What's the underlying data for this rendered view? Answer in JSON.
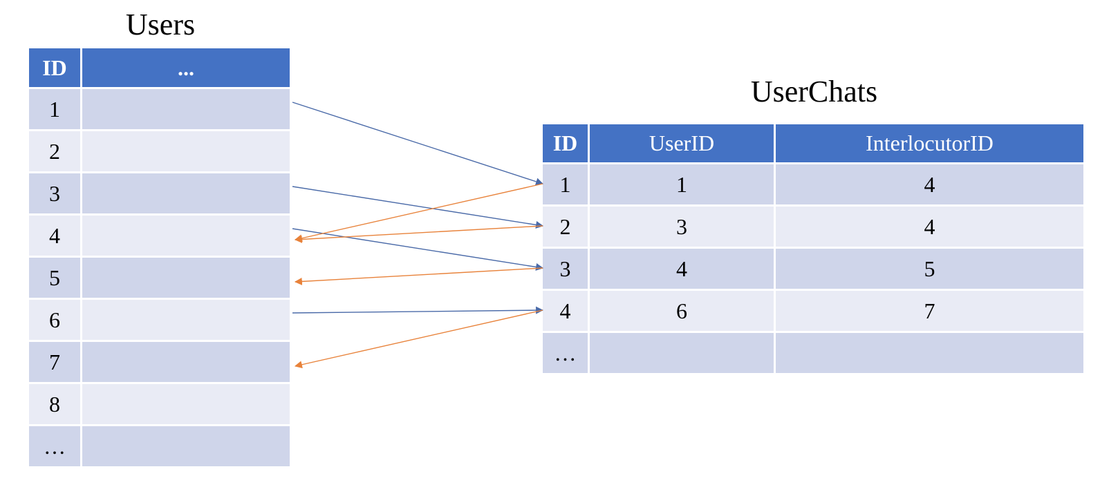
{
  "users": {
    "title": "Users",
    "headers": [
      "ID",
      "..."
    ],
    "rows": [
      "1",
      "2",
      "3",
      "4",
      "5",
      "6",
      "7",
      "8",
      "…"
    ]
  },
  "userchats": {
    "title": "UserChats",
    "headers": [
      "ID",
      "UserID",
      "InterlocutorID"
    ],
    "rows": [
      [
        "1",
        "1",
        "4"
      ],
      [
        "2",
        "3",
        "4"
      ],
      [
        "3",
        "4",
        "5"
      ],
      [
        "4",
        "6",
        "7"
      ],
      [
        "…",
        "",
        ""
      ]
    ]
  },
  "links": {
    "user_id": [
      {
        "user": "1",
        "chat": "1"
      },
      {
        "user": "3",
        "chat": "2"
      },
      {
        "user": "4",
        "chat": "3"
      },
      {
        "user": "6",
        "chat": "4"
      }
    ],
    "interlocutor_id": [
      {
        "chat": "1",
        "user": "4"
      },
      {
        "chat": "2",
        "user": "4"
      },
      {
        "chat": "3",
        "user": "5"
      },
      {
        "chat": "4",
        "user": "7"
      }
    ],
    "colors": {
      "user_id": "#4a6aa8",
      "interlocutor_id": "#e8823a"
    }
  }
}
